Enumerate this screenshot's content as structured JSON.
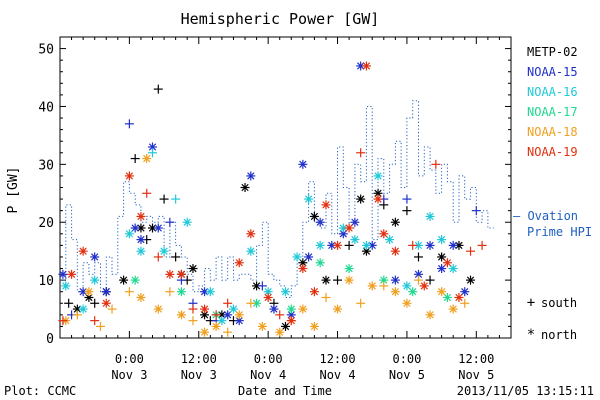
{
  "chart_data": {
    "type": "scatter",
    "title": "Hemispheric Power [GW]",
    "ylabel": "P [GW]",
    "xlabel": "Date and Time",
    "ylim": [
      0,
      52
    ],
    "xlim_hours": [
      0,
      78
    ],
    "y_ticks": [
      0,
      10,
      20,
      30,
      40,
      50
    ],
    "x_ticks": [
      {
        "hour": 12,
        "time": "0:00",
        "date": "Nov 3"
      },
      {
        "hour": 24,
        "time": "12:00",
        "date": "Nov 3"
      },
      {
        "hour": 36,
        "time": "0:00",
        "date": "Nov 4"
      },
      {
        "hour": 48,
        "time": "12:00",
        "date": "Nov 4"
      },
      {
        "hour": 60,
        "time": "0:00",
        "date": "Nov 5"
      },
      {
        "hour": 72,
        "time": "12:00",
        "date": "Nov 5"
      }
    ],
    "legend": {
      "series": [
        {
          "name": "METP-02",
          "color": "#000000"
        },
        {
          "name": "NOAA-15",
          "color": "#2030c8"
        },
        {
          "name": "NOAA-16",
          "color": "#20c8d8"
        },
        {
          "name": "NOAA-17",
          "color": "#20d890"
        },
        {
          "name": "NOAA-18",
          "color": "#f0a020"
        },
        {
          "name": "NOAA-19",
          "color": "#e03010"
        }
      ],
      "markers": [
        {
          "symbol": "+",
          "label": "south"
        },
        {
          "symbol": "*",
          "label": "north"
        }
      ]
    },
    "ovation": {
      "label_line1": "— Ovation",
      "label_line2": "Prime HPI",
      "color": "#2060c0",
      "steps": [
        [
          0,
          10
        ],
        [
          1,
          23
        ],
        [
          2,
          17
        ],
        [
          3,
          8
        ],
        [
          4,
          13
        ],
        [
          5,
          11
        ],
        [
          6,
          13
        ],
        [
          7,
          8
        ],
        [
          8,
          14
        ],
        [
          9,
          11
        ],
        [
          10,
          21
        ],
        [
          11,
          27
        ],
        [
          12,
          25
        ],
        [
          13,
          23
        ],
        [
          14,
          20
        ],
        [
          15,
          21
        ],
        [
          16,
          20
        ],
        [
          17,
          21
        ],
        [
          18,
          14
        ],
        [
          19,
          20
        ],
        [
          20,
          16
        ],
        [
          21,
          14
        ],
        [
          22,
          11
        ],
        [
          23,
          8
        ],
        [
          24,
          9
        ],
        [
          25,
          12
        ],
        [
          26,
          10
        ],
        [
          27,
          14
        ],
        [
          28,
          10
        ],
        [
          29,
          14
        ],
        [
          30,
          10
        ],
        [
          31,
          11
        ],
        [
          32,
          11
        ],
        [
          33,
          10
        ],
        [
          34,
          16
        ],
        [
          35,
          20
        ],
        [
          36,
          11
        ],
        [
          37,
          10
        ],
        [
          38,
          9
        ],
        [
          39,
          7
        ],
        [
          40,
          9
        ],
        [
          41,
          14
        ],
        [
          42,
          20
        ],
        [
          43,
          27
        ],
        [
          44,
          20
        ],
        [
          45,
          19
        ],
        [
          46,
          25
        ],
        [
          47,
          18
        ],
        [
          48,
          33
        ],
        [
          49,
          26
        ],
        [
          50,
          19
        ],
        [
          51,
          30
        ],
        [
          52,
          27
        ],
        [
          53,
          40
        ],
        [
          54,
          17
        ],
        [
          55,
          31
        ],
        [
          56,
          25
        ],
        [
          57,
          30
        ],
        [
          58,
          34
        ],
        [
          59,
          26
        ],
        [
          60,
          38
        ],
        [
          61,
          41
        ],
        [
          62,
          28
        ],
        [
          63,
          33
        ],
        [
          64,
          29
        ],
        [
          65,
          25
        ],
        [
          66,
          30
        ],
        [
          67,
          27
        ],
        [
          68,
          20
        ],
        [
          69,
          28
        ],
        [
          70,
          24
        ],
        [
          71,
          26
        ],
        [
          72,
          20
        ],
        [
          73,
          22
        ],
        [
          74,
          19
        ]
      ]
    },
    "series": [
      {
        "name": "METP-02",
        "color": "#000000",
        "points": [
          [
            1.5,
            6,
            "+"
          ],
          [
            3,
            5,
            "*"
          ],
          [
            5,
            7,
            "*"
          ],
          [
            6,
            6,
            "+"
          ],
          [
            8,
            8,
            "*"
          ],
          [
            11,
            10,
            "*"
          ],
          [
            13,
            31,
            "+"
          ],
          [
            14,
            19,
            "*"
          ],
          [
            15,
            17,
            "+"
          ],
          [
            16,
            19,
            "*"
          ],
          [
            17,
            43,
            "+"
          ],
          [
            18,
            24,
            "+"
          ],
          [
            20,
            14,
            "+"
          ],
          [
            21,
            11,
            "*"
          ],
          [
            22,
            10,
            "+"
          ],
          [
            23,
            12,
            "*"
          ],
          [
            25,
            4,
            "*"
          ],
          [
            26,
            3,
            "+"
          ],
          [
            28,
            4,
            "*"
          ],
          [
            30,
            3,
            "+"
          ],
          [
            32,
            26,
            "*"
          ],
          [
            34,
            9,
            "*"
          ],
          [
            37,
            6,
            "+"
          ],
          [
            39,
            2,
            "*"
          ],
          [
            42,
            13,
            "*"
          ],
          [
            44,
            21,
            "*"
          ],
          [
            46,
            10,
            "*"
          ],
          [
            48,
            10,
            "+"
          ],
          [
            50,
            16,
            "+"
          ],
          [
            52,
            24,
            "*"
          ],
          [
            53,
            15,
            "*"
          ],
          [
            55,
            25,
            "*"
          ],
          [
            56,
            23,
            "+"
          ],
          [
            58,
            20,
            "*"
          ],
          [
            60,
            22,
            "+"
          ],
          [
            62,
            14,
            "+"
          ],
          [
            64,
            10,
            "+"
          ],
          [
            66,
            14,
            "*"
          ],
          [
            69,
            16,
            "*"
          ],
          [
            71,
            10,
            "*"
          ]
        ]
      },
      {
        "name": "NOAA-15",
        "color": "#2030c8",
        "points": [
          [
            0.5,
            11,
            "*"
          ],
          [
            2,
            4,
            "+"
          ],
          [
            4,
            8,
            "*"
          ],
          [
            6,
            14,
            "*"
          ],
          [
            8,
            8,
            "*"
          ],
          [
            12,
            37,
            "+"
          ],
          [
            13,
            19,
            "*"
          ],
          [
            14,
            17,
            "*"
          ],
          [
            16,
            33,
            "*"
          ],
          [
            17,
            19,
            "*"
          ],
          [
            19,
            20,
            "+"
          ],
          [
            21,
            10,
            "+"
          ],
          [
            23,
            6,
            "+"
          ],
          [
            25,
            8,
            "*"
          ],
          [
            27,
            3,
            "+"
          ],
          [
            29,
            4,
            "*"
          ],
          [
            31,
            3,
            "*"
          ],
          [
            33,
            28,
            "*"
          ],
          [
            35,
            9,
            "+"
          ],
          [
            37,
            5,
            "*"
          ],
          [
            40,
            4,
            "*"
          ],
          [
            42,
            30,
            "*"
          ],
          [
            43,
            14,
            "*"
          ],
          [
            45,
            20,
            "*"
          ],
          [
            47,
            16,
            "*"
          ],
          [
            49,
            18,
            "*"
          ],
          [
            51,
            20,
            "*"
          ],
          [
            52,
            47,
            "*"
          ],
          [
            54,
            16,
            "*"
          ],
          [
            56,
            24,
            "+"
          ],
          [
            58,
            10,
            "*"
          ],
          [
            60,
            24,
            "+"
          ],
          [
            62,
            11,
            "*"
          ],
          [
            64,
            16,
            "*"
          ],
          [
            66,
            12,
            "*"
          ],
          [
            68,
            16,
            "*"
          ],
          [
            70,
            8,
            "*"
          ],
          [
            72,
            22,
            "+"
          ]
        ]
      },
      {
        "name": "NOAA-16",
        "color": "#20c8d8",
        "points": [
          [
            1,
            9,
            "*"
          ],
          [
            4,
            5,
            "*"
          ],
          [
            6,
            10,
            "*"
          ],
          [
            12,
            18,
            "*"
          ],
          [
            14,
            15,
            "*"
          ],
          [
            16,
            32,
            "+"
          ],
          [
            18,
            15,
            "*"
          ],
          [
            20,
            24,
            "+"
          ],
          [
            22,
            20,
            "*"
          ],
          [
            26,
            8,
            "*"
          ],
          [
            28,
            3,
            "*"
          ],
          [
            30,
            5,
            "*"
          ],
          [
            33,
            15,
            "*"
          ],
          [
            36,
            8,
            "*"
          ],
          [
            39,
            8,
            "*"
          ],
          [
            41,
            14,
            "*"
          ],
          [
            43,
            24,
            "*"
          ],
          [
            45,
            16,
            "*"
          ],
          [
            49,
            19,
            "*"
          ],
          [
            51,
            17,
            "*"
          ],
          [
            53,
            16,
            "*"
          ],
          [
            55,
            28,
            "*"
          ],
          [
            57,
            17,
            "*"
          ],
          [
            60,
            9,
            "*"
          ],
          [
            62,
            16,
            "*"
          ],
          [
            64,
            21,
            "*"
          ],
          [
            66,
            17,
            "*"
          ],
          [
            68,
            12,
            "*"
          ]
        ]
      },
      {
        "name": "NOAA-17",
        "color": "#20d890",
        "points": [
          [
            13,
            10,
            "*"
          ],
          [
            21,
            8,
            "*"
          ],
          [
            27,
            4,
            "*"
          ],
          [
            34,
            6,
            "*"
          ],
          [
            40,
            5,
            "*"
          ],
          [
            45,
            13,
            "*"
          ],
          [
            50,
            12,
            "*"
          ],
          [
            56,
            10,
            "*"
          ],
          [
            61,
            8,
            "*"
          ],
          [
            67,
            7,
            "*"
          ]
        ]
      },
      {
        "name": "NOAA-18",
        "color": "#f0a020",
        "points": [
          [
            1,
            3,
            "*"
          ],
          [
            3,
            4,
            "+"
          ],
          [
            5,
            8,
            "*"
          ],
          [
            7,
            2,
            "+"
          ],
          [
            9,
            5,
            "+"
          ],
          [
            12,
            8,
            "+"
          ],
          [
            14,
            7,
            "*"
          ],
          [
            15,
            31,
            "*"
          ],
          [
            17,
            5,
            "*"
          ],
          [
            19,
            8,
            "+"
          ],
          [
            21,
            4,
            "*"
          ],
          [
            23,
            3,
            "+"
          ],
          [
            25,
            1,
            "*"
          ],
          [
            27,
            2,
            "*"
          ],
          [
            29,
            1,
            "+"
          ],
          [
            31,
            4,
            "*"
          ],
          [
            33,
            6,
            "+"
          ],
          [
            35,
            2,
            "*"
          ],
          [
            38,
            1,
            "*"
          ],
          [
            40,
            3,
            "+"
          ],
          [
            42,
            5,
            "*"
          ],
          [
            44,
            2,
            "*"
          ],
          [
            46,
            7,
            "+"
          ],
          [
            48,
            5,
            "*"
          ],
          [
            50,
            10,
            "*"
          ],
          [
            52,
            6,
            "+"
          ],
          [
            54,
            9,
            "*"
          ],
          [
            56,
            9,
            "+"
          ],
          [
            58,
            8,
            "*"
          ],
          [
            60,
            6,
            "*"
          ],
          [
            62,
            10,
            "+"
          ],
          [
            64,
            4,
            "*"
          ],
          [
            66,
            8,
            "*"
          ],
          [
            68,
            5,
            "*"
          ],
          [
            70,
            6,
            "+"
          ]
        ]
      },
      {
        "name": "NOAA-19",
        "color": "#e03010",
        "points": [
          [
            0.5,
            3,
            "+"
          ],
          [
            2,
            11,
            "*"
          ],
          [
            4,
            15,
            "*"
          ],
          [
            6,
            3,
            "+"
          ],
          [
            8,
            6,
            "*"
          ],
          [
            12,
            28,
            "*"
          ],
          [
            14,
            21,
            "*"
          ],
          [
            15,
            25,
            "+"
          ],
          [
            17,
            14,
            "+"
          ],
          [
            19,
            11,
            "*"
          ],
          [
            21,
            11,
            "*"
          ],
          [
            23,
            5,
            "+"
          ],
          [
            25,
            5,
            "*"
          ],
          [
            27,
            4,
            "+"
          ],
          [
            29,
            6,
            "+"
          ],
          [
            31,
            13,
            "*"
          ],
          [
            33,
            18,
            "*"
          ],
          [
            36,
            7,
            "*"
          ],
          [
            38,
            4,
            "+"
          ],
          [
            40,
            3,
            "*"
          ],
          [
            42,
            12,
            "*"
          ],
          [
            44,
            8,
            "*"
          ],
          [
            46,
            23,
            "*"
          ],
          [
            48,
            16,
            "*"
          ],
          [
            50,
            19,
            "*"
          ],
          [
            52,
            32,
            "+"
          ],
          [
            53,
            47,
            "*"
          ],
          [
            55,
            24,
            "*"
          ],
          [
            56,
            18,
            "*"
          ],
          [
            58,
            15,
            "*"
          ],
          [
            61,
            16,
            "+"
          ],
          [
            63,
            9,
            "*"
          ],
          [
            65,
            30,
            "+"
          ],
          [
            67,
            13,
            "*"
          ],
          [
            69,
            7,
            "*"
          ],
          [
            71,
            15,
            "+"
          ],
          [
            73,
            16,
            "+"
          ]
        ]
      }
    ]
  },
  "footer": {
    "plot_credit": "Plot: CCMC",
    "timestamp": "2013/11/05 13:15:11"
  }
}
